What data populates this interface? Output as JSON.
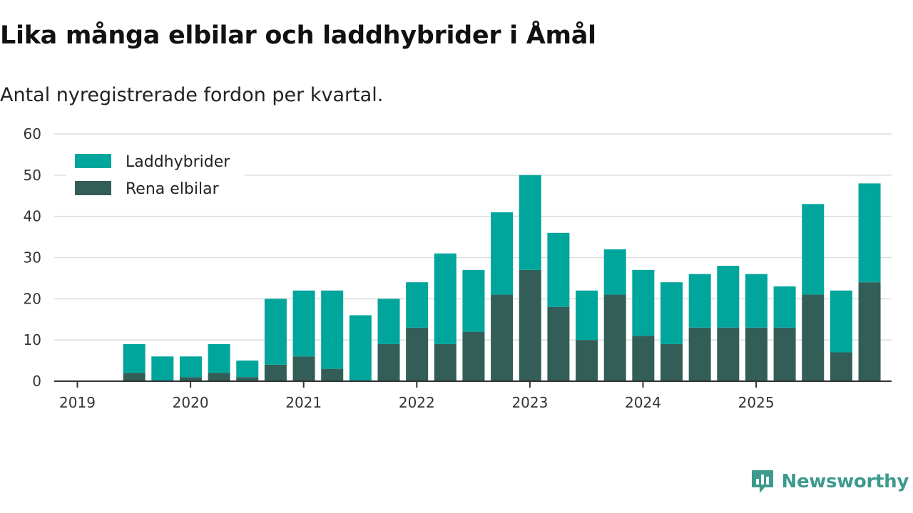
{
  "title": "Lika många elbilar och laddhybrider i Åmål",
  "subtitle": "Antal nyregistrerade fordon per kvartal.",
  "brand": "Newsworthy",
  "colors": {
    "laddhybrider": "#00a59b",
    "elbilar": "#335e58",
    "grid": "#dddddd",
    "axis": "#333333"
  },
  "chart_data": {
    "type": "bar",
    "stacked": true,
    "title": "Lika många elbilar och laddhybrider i Åmål",
    "subtitle": "Antal nyregistrerade fordon per kvartal.",
    "xlabel": "",
    "ylabel": "",
    "ylim": [
      0,
      60
    ],
    "yticks": [
      0,
      10,
      20,
      30,
      40,
      50,
      60
    ],
    "grid": true,
    "legend_position": "top-left",
    "year_ticks": [
      "2019",
      "2020",
      "2021",
      "2022",
      "2023",
      "2024",
      "2025"
    ],
    "categories": [
      "2019 Q1",
      "2019 Q2",
      "2019 Q3",
      "2019 Q4",
      "2020 Q1",
      "2020 Q2",
      "2020 Q3",
      "2020 Q4",
      "2021 Q1",
      "2021 Q2",
      "2021 Q3",
      "2021 Q4",
      "2022 Q1",
      "2022 Q2",
      "2022 Q3",
      "2022 Q4",
      "2023 Q1",
      "2023 Q2",
      "2023 Q3",
      "2023 Q4",
      "2024 Q1",
      "2024 Q2",
      "2024 Q3",
      "2024 Q4",
      "2025 Q1",
      "2025 Q2",
      "2025 Q3",
      "2025 Q4"
    ],
    "series": [
      {
        "name": "Rena elbilar",
        "values": [
          0,
          2,
          0,
          1,
          2,
          1,
          4,
          6,
          3,
          0,
          9,
          13,
          9,
          12,
          21,
          27,
          18,
          10,
          21,
          11,
          9,
          13,
          13,
          13,
          13,
          21,
          7,
          24
        ]
      },
      {
        "name": "Laddhybrider",
        "values": [
          0,
          7,
          6,
          5,
          7,
          4,
          16,
          16,
          19,
          16,
          11,
          11,
          22,
          15,
          20,
          23,
          18,
          12,
          11,
          16,
          15,
          13,
          15,
          13,
          10,
          22,
          15,
          24
        ]
      }
    ],
    "legend": [
      {
        "name": "Laddhybrider"
      },
      {
        "name": "Rena elbilar"
      }
    ]
  }
}
